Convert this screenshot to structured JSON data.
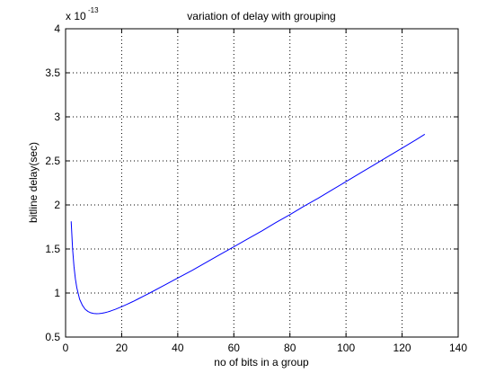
{
  "chart_data": {
    "type": "line",
    "title": "variation of delay with grouping",
    "xlabel": "no of bits in a group",
    "ylabel": "bitline delay(sec)",
    "y_multiplier": {
      "base": "x 10",
      "exponent": "-13"
    },
    "xlim": [
      0,
      140
    ],
    "ylim": [
      0.5,
      4
    ],
    "xticks": [
      0,
      20,
      40,
      60,
      80,
      100,
      120,
      140
    ],
    "yticks": [
      0.5,
      1,
      1.5,
      2,
      2.5,
      3,
      3.5,
      4
    ],
    "xtick_labels": [
      "0",
      "20",
      "40",
      "60",
      "80",
      "100",
      "120",
      "140"
    ],
    "ytick_labels": [
      "0.5",
      "1",
      "1.5",
      "2",
      "2.5",
      "3",
      "3.5",
      "4"
    ],
    "grid": true,
    "grid_style": "dotted",
    "line_color": "#0000ff",
    "series": [
      {
        "x": [
          2,
          2.5,
          3,
          3.5,
          4,
          5,
          6,
          7,
          8,
          9,
          10,
          11,
          12,
          13,
          14,
          15,
          16,
          18,
          20,
          22,
          24,
          26,
          28,
          30,
          35,
          40,
          45,
          50,
          55,
          60,
          65,
          70,
          75,
          80,
          85,
          90,
          95,
          100,
          105,
          110,
          115,
          120,
          125,
          128
        ],
        "values": [
          1.81,
          1.5,
          1.3,
          1.16,
          1.06,
          0.93,
          0.86,
          0.815,
          0.79,
          0.775,
          0.768,
          0.765,
          0.766,
          0.77,
          0.777,
          0.785,
          0.795,
          0.818,
          0.845,
          0.873,
          0.903,
          0.935,
          0.968,
          1.0,
          1.085,
          1.17,
          1.255,
          1.345,
          1.435,
          1.525,
          1.615,
          1.705,
          1.8,
          1.89,
          1.985,
          2.075,
          2.17,
          2.265,
          2.36,
          2.455,
          2.55,
          2.645,
          2.74,
          2.8
        ]
      }
    ]
  }
}
